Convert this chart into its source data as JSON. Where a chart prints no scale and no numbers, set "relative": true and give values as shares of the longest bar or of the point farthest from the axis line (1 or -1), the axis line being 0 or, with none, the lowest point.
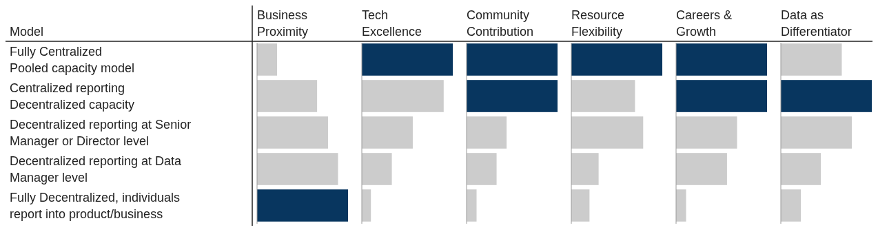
{
  "chart_data": [
    {
      "type": "bar",
      "orientation": "horizontal",
      "relative": true,
      "title": "Business Proximity",
      "ylabel": "Model",
      "tick_labels": "y",
      "categories": [
        "Fully Centralized\nPooled capacity model",
        "Centralized reporting\nDecentralized capacity",
        "Decentralized reporting at Senior\nManager or Director level",
        "Decentralized reporting at Data\nManager level",
        "Fully Decentralized, individuals\nreport into product/business"
      ],
      "values": [
        0.22,
        0.66,
        0.78,
        0.89,
        1
      ],
      "colors": [
        "#cccccc",
        "#cccccc",
        "#cccccc",
        "#cccccc",
        "#08365f"
      ]
    },
    {
      "type": "bar",
      "orientation": "horizontal",
      "relative": true,
      "title": "Tech Excellence",
      "tick_labels": false,
      "categories": [
        null,
        null,
        null,
        null,
        null
      ],
      "values": [
        1,
        0.9,
        0.56,
        0.33,
        0.1
      ],
      "colors": [
        "#08365f",
        "#cccccc",
        "#cccccc",
        "#cccccc",
        "#cccccc"
      ]
    },
    {
      "type": "bar",
      "orientation": "horizontal",
      "relative": true,
      "title": "Community Contribution",
      "tick_labels": false,
      "categories": [
        null,
        null,
        null,
        null,
        null
      ],
      "values": [
        1,
        1,
        0.44,
        0.33,
        0.11
      ],
      "colors": [
        "#08365f",
        "#08365f",
        "#cccccc",
        "#cccccc",
        "#cccccc"
      ]
    },
    {
      "type": "bar",
      "orientation": "horizontal",
      "relative": true,
      "title": "Resource Flexibility",
      "tick_labels": false,
      "categories": [
        null,
        null,
        null,
        null,
        null
      ],
      "values": [
        1,
        0.7,
        0.79,
        0.3,
        0.2
      ],
      "colors": [
        "#08365f",
        "#cccccc",
        "#cccccc",
        "#cccccc",
        "#cccccc"
      ]
    },
    {
      "type": "bar",
      "orientation": "horizontal",
      "relative": true,
      "title": "Careers & Growth",
      "tick_labels": false,
      "categories": [
        null,
        null,
        null,
        null,
        null
      ],
      "values": [
        1,
        1,
        0.67,
        0.56,
        0.11
      ],
      "colors": [
        "#08365f",
        "#08365f",
        "#cccccc",
        "#cccccc",
        "#cccccc"
      ]
    },
    {
      "type": "bar",
      "orientation": "horizontal",
      "relative": true,
      "title": "Data as Differentiator",
      "tick_labels": false,
      "categories": [
        null,
        null,
        null,
        null,
        null
      ],
      "values": [
        0.67,
        1,
        0.78,
        0.44,
        0.22
      ],
      "colors": [
        "#cccccc",
        "#08365f",
        "#cccccc",
        "#cccccc",
        "#cccccc"
      ]
    }
  ]
}
